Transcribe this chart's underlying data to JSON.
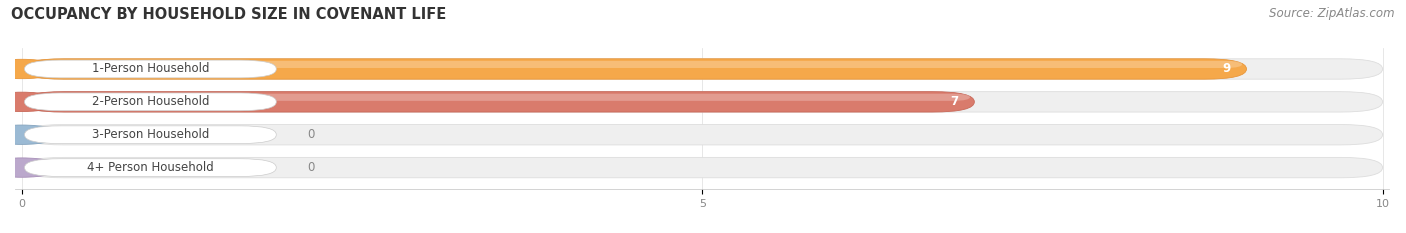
{
  "title": "OCCUPANCY BY HOUSEHOLD SIZE IN COVENANT LIFE",
  "source": "Source: ZipAtlas.com",
  "categories": [
    "1-Person Household",
    "2-Person Household",
    "3-Person Household",
    "4+ Person Household"
  ],
  "values": [
    9,
    7,
    0,
    0
  ],
  "bar_colors": [
    "#F5A84A",
    "#D97B6C",
    "#9BBAD4",
    "#BBA8CC"
  ],
  "bar_edge_colors": [
    "#E8963A",
    "#C86858",
    "#85A4BE",
    "#A890B8"
  ],
  "dot_colors": [
    "#E8963A",
    "#C86858",
    "#85A4BE",
    "#A890B8"
  ],
  "xlim": [
    0,
    10
  ],
  "xticks": [
    0,
    5,
    10
  ],
  "background_color": "#ffffff",
  "bar_bg_color": "#efefef",
  "bar_bg_edge_color": "#dddddd",
  "title_fontsize": 10.5,
  "label_fontsize": 8.5,
  "value_fontsize": 8.5,
  "source_fontsize": 8.5
}
